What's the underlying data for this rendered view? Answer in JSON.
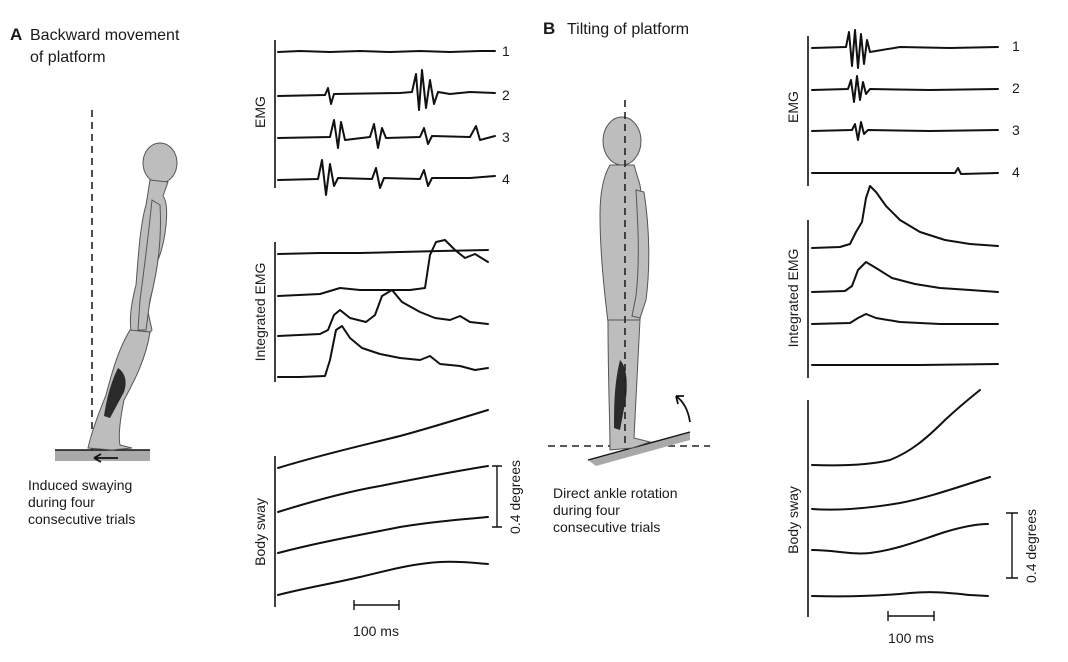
{
  "panel_a": {
    "letter": "A",
    "title_line1": "Backward movement",
    "title_line2": "of platform",
    "caption_line1": "Induced swaying",
    "caption_line2": "during four",
    "caption_line3": "consecutive trials"
  },
  "panel_b": {
    "letter": "B",
    "title": "Tilting of platform",
    "caption_line1": "Direct ankle rotation",
    "caption_line2": "during four",
    "caption_line3": "consecutive trials"
  },
  "labels": {
    "emg": "EMG",
    "integrated_emg": "Integrated EMG",
    "body_sway": "Body sway",
    "scale_degrees": "0.4 degrees",
    "scale_time": "100 ms",
    "trace_1": "1",
    "trace_2": "2",
    "trace_3": "3",
    "trace_4": "4"
  }
}
